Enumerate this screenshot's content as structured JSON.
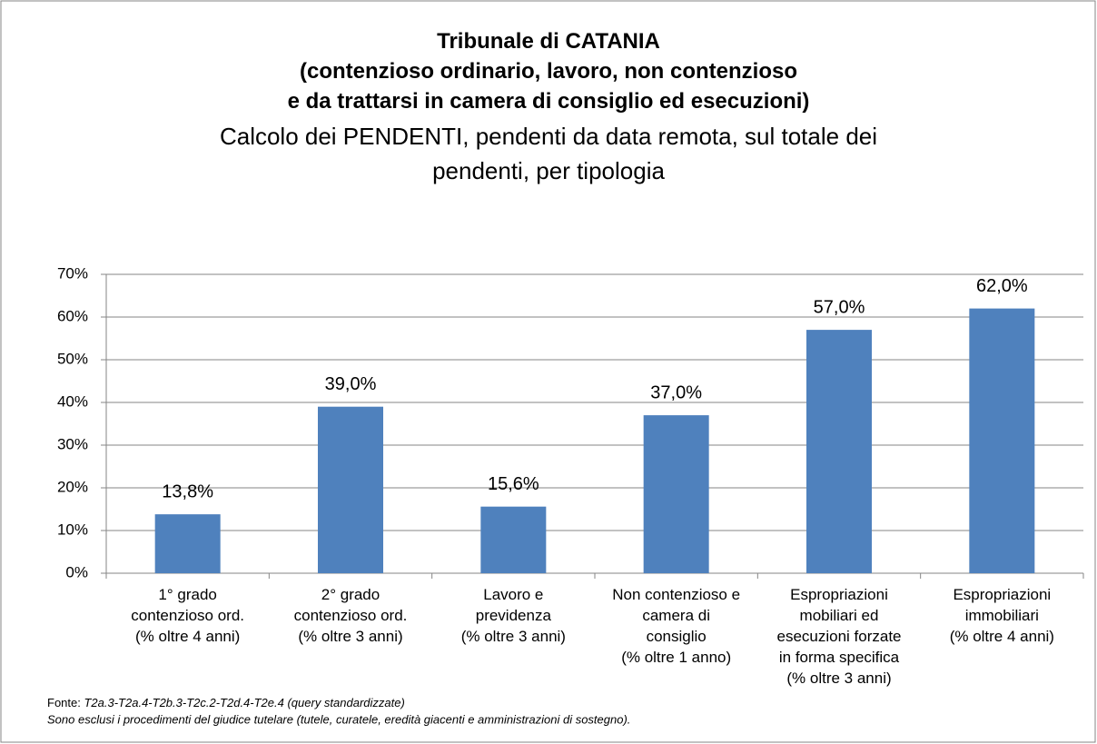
{
  "chart_data": {
    "type": "bar",
    "title": "Tribunale di CATANIA\n(contenzioso ordinario, lavoro, non contenzioso\ne da trattarsi in camera di consiglio ed esecuzioni)",
    "subtitle": "Calcolo dei PENDENTI, pendenti da data remota, sul totale dei\npendenti, per tipologia",
    "categories": [
      "1° grado\ncontenzioso ord.\n(% oltre 4 anni)",
      "2° grado\ncontenzioso ord.\n(% oltre 3 anni)",
      "Lavoro e\nprevidenza\n(% oltre 3 anni)",
      "Non contenzioso e\ncamera di\nconsiglio\n(% oltre 1 anno)",
      "Espropriazioni\nmobiliari ed\nesecuzioni forzate\nin forma specifica\n(% oltre 3 anni)",
      "Espropriazioni\nimmobiliari\n(% oltre 4 anni)"
    ],
    "values": [
      13.8,
      39.0,
      15.6,
      37.0,
      57.0,
      62.0
    ],
    "value_labels": [
      "13,8%",
      "39,0%",
      "15,6%",
      "37,0%",
      "57,0%",
      "62,0%"
    ],
    "color": "#4f81bd",
    "ylim": [
      0,
      70
    ],
    "yticks": [
      {
        "value": 0,
        "label": "0%"
      },
      {
        "value": 10,
        "label": "10%"
      },
      {
        "value": 20,
        "label": "20%"
      },
      {
        "value": 30,
        "label": "30%"
      },
      {
        "value": 40,
        "label": "40%"
      },
      {
        "value": 50,
        "label": "50%"
      },
      {
        "value": 60,
        "label": "60%"
      },
      {
        "value": 70,
        "label": "70%"
      }
    ],
    "grid": true
  },
  "footer": {
    "source_label": "Fonte:",
    "source": "T2a.3-T2a.4-T2b.3-T2c.2-T2d.4-T2e.4 (query standardizzate)",
    "note": "Sono esclusi i procedimenti del giudice tutelare (tutele, curatele, eredità giacenti e amministrazioni di sostegno)."
  }
}
